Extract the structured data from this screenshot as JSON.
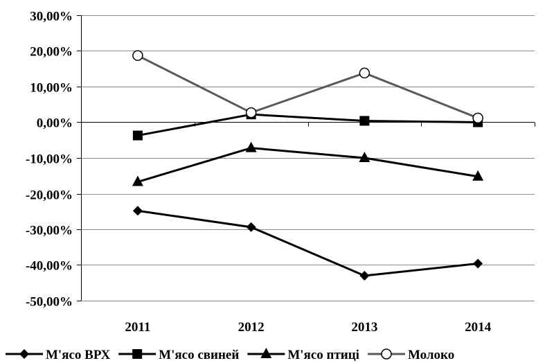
{
  "chart_data": {
    "type": "line",
    "title": "",
    "xlabel": "",
    "ylabel": "",
    "categories": [
      "2011",
      "2012",
      "2013",
      "2014"
    ],
    "ylim": [
      -0.5,
      0.3
    ],
    "y_ticks": [
      0.3,
      0.2,
      0.1,
      0.0,
      -0.1,
      -0.2,
      -0.3,
      -0.4,
      -0.5
    ],
    "y_tick_labels": [
      "30,00%",
      "20,00%",
      "10,00%",
      "0,00%",
      "-10,00%",
      "-20,00%",
      "-30,00%",
      "-40,00%",
      "-50,00%"
    ],
    "grid": true,
    "legend_position": "bottom",
    "series": [
      {
        "name": "М'ясо ВРХ",
        "values": [
          -0.248,
          -0.294,
          -0.43,
          -0.396
        ],
        "marker": "diamond",
        "color": "#000000"
      },
      {
        "name": "М'ясо свиней",
        "values": [
          -0.037,
          0.022,
          0.004,
          0.0
        ],
        "marker": "square",
        "color": "#000000"
      },
      {
        "name": "М'ясо птиці",
        "values": [
          -0.167,
          -0.072,
          -0.1,
          -0.152
        ],
        "marker": "triangle",
        "color": "#000000"
      },
      {
        "name": "Молоко",
        "values": [
          0.187,
          0.027,
          0.138,
          0.012
        ],
        "marker": "circle-open",
        "color": "#595959"
      }
    ]
  }
}
